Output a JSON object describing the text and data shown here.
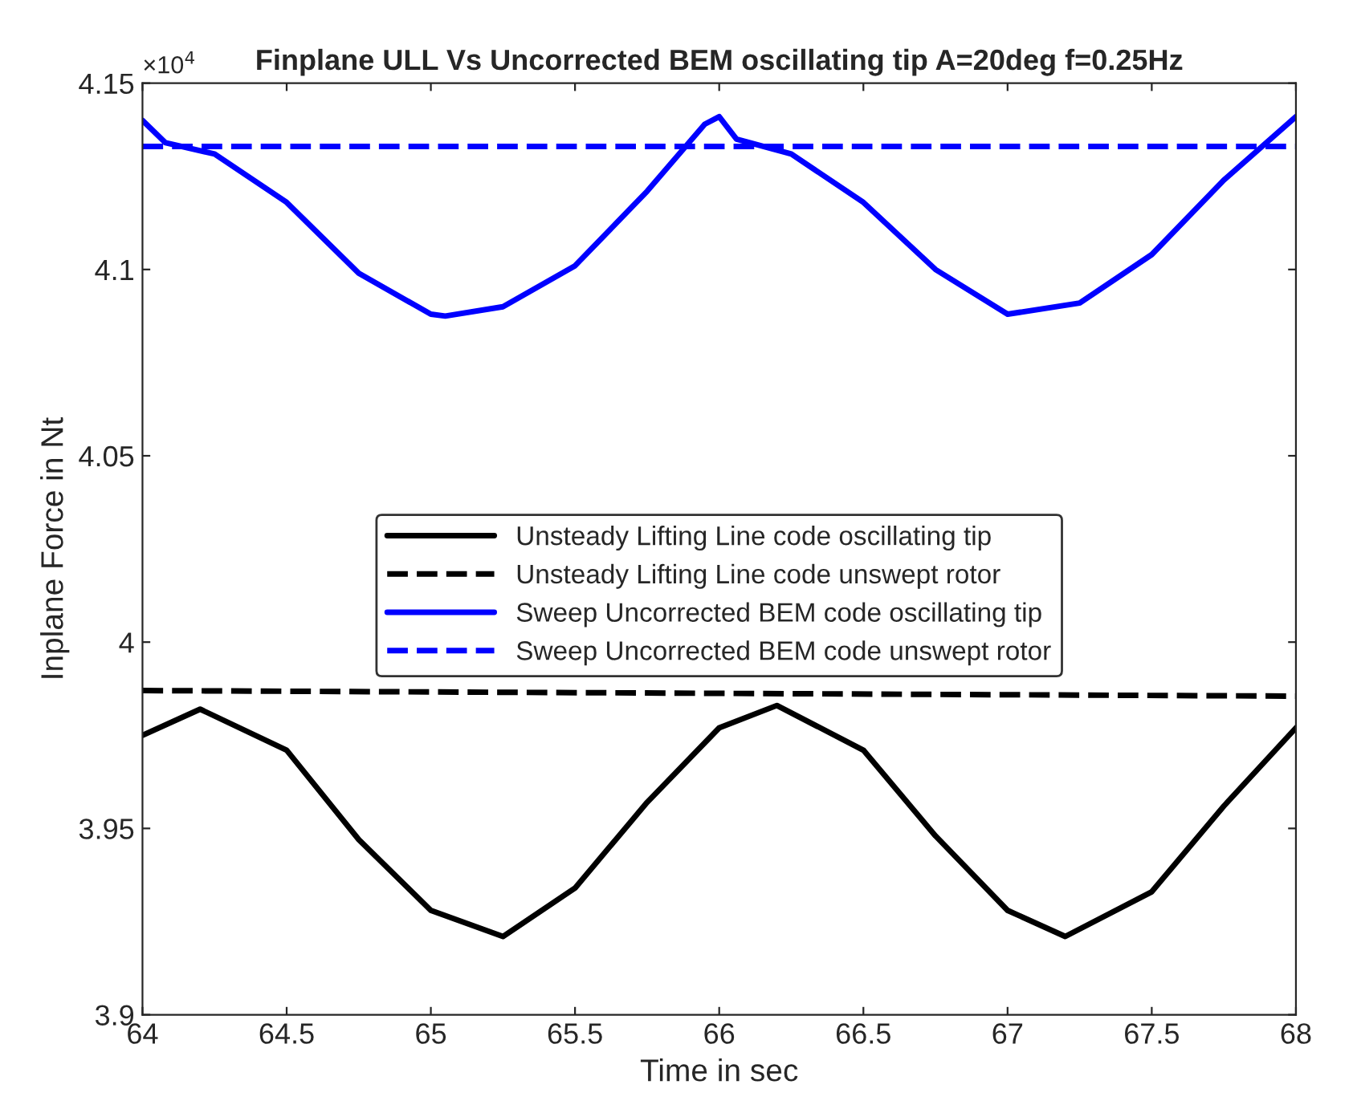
{
  "chart_data": {
    "type": "line",
    "title": "Finplane ULL Vs Uncorrected BEM oscillating tip A=20deg f=0.25Hz",
    "xlabel": "Time in sec",
    "ylabel": "Inplane Force in Nt",
    "annotations": [
      "×10$^{4}$"
    ],
    "xlim": [
      64,
      68
    ],
    "xticks": [
      64,
      64.5,
      65,
      65.5,
      66,
      66.5,
      67,
      67.5,
      68
    ],
    "ylim": [
      3.9,
      4.15
    ],
    "yticks": [
      3.9,
      3.95,
      4,
      4.05,
      4.1,
      4.15
    ],
    "grid": false,
    "legend": "center",
    "marker": "none",
    "series": [
      {
        "name": "Unsteady Lifting Line code oscillating tip",
        "color": "#000000",
        "line_style": "solid",
        "x": [
          64,
          64.2,
          64.5,
          64.75,
          65,
          65.25,
          65.5,
          65.75,
          66,
          66.2,
          66.5,
          66.75,
          67,
          67.2,
          67.5,
          67.75,
          68
        ],
        "values": [
          3.975,
          3.982,
          3.971,
          3.947,
          3.928,
          3.921,
          3.934,
          3.957,
          3.977,
          3.983,
          3.971,
          3.948,
          3.928,
          3.921,
          3.933,
          3.956,
          3.977
        ]
      },
      {
        "name": "Unsteady Lifting Line code unswept rotor",
        "color": "#000000",
        "line_style": "dashed",
        "x": [
          64,
          68
        ],
        "values": [
          3.987,
          3.9855
        ]
      },
      {
        "name": "Sweep Uncorrected BEM code oscillating tip",
        "color": "#0000ff",
        "line_style": "solid",
        "x": [
          64,
          64.08,
          64.25,
          64.5,
          64.75,
          65,
          65.05,
          65.25,
          65.5,
          65.75,
          65.95,
          66,
          66.06,
          66.25,
          66.5,
          66.75,
          67,
          67.25,
          67.5,
          67.75,
          68
        ],
        "values": [
          4.14,
          4.134,
          4.131,
          4.118,
          4.099,
          4.088,
          4.0875,
          4.09,
          4.101,
          4.121,
          4.139,
          4.141,
          4.135,
          4.131,
          4.118,
          4.1,
          4.088,
          4.091,
          4.104,
          4.124,
          4.141
        ]
      },
      {
        "name": "Sweep Uncorrected BEM code unswept rotor",
        "color": "#0000ff",
        "line_style": "dashed",
        "x": [
          64,
          68
        ],
        "values": [
          4.133,
          4.133
        ]
      }
    ]
  }
}
